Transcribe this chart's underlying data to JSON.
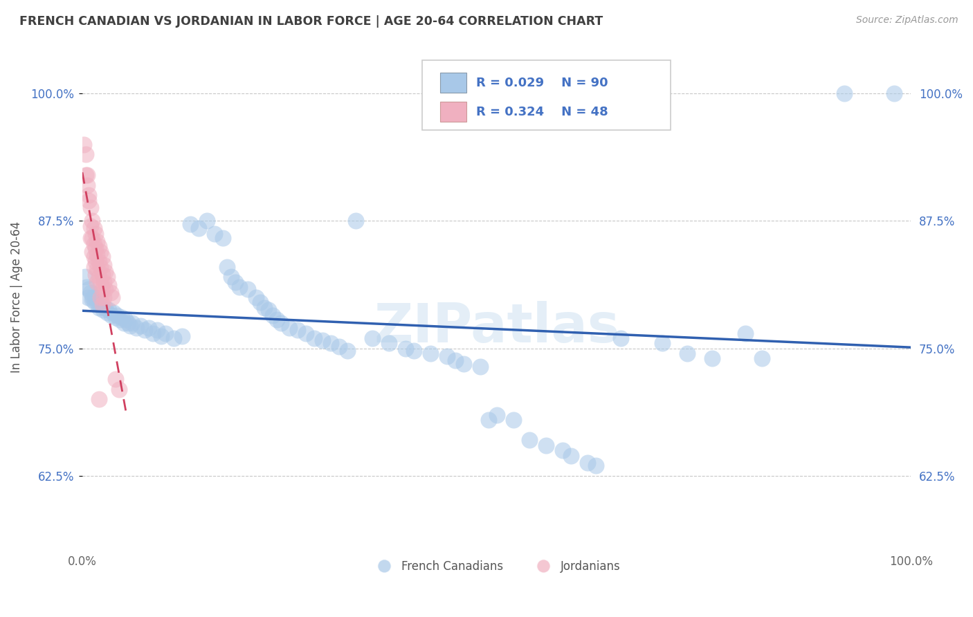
{
  "title": "FRENCH CANADIAN VS JORDANIAN IN LABOR FORCE | AGE 20-64 CORRELATION CHART",
  "source": "Source: ZipAtlas.com",
  "ylabel": "In Labor Force | Age 20-64",
  "xlim": [
    0.0,
    1.0
  ],
  "ylim": [
    0.555,
    1.045
  ],
  "yticks": [
    0.625,
    0.75,
    0.875,
    1.0
  ],
  "ytick_labels": [
    "62.5%",
    "75.0%",
    "87.5%",
    "100.0%"
  ],
  "xticks": [
    0.0,
    1.0
  ],
  "xtick_labels": [
    "0.0%",
    "100.0%"
  ],
  "legend_r1": "R = 0.029",
  "legend_n1": "N = 90",
  "legend_r2": "R = 0.324",
  "legend_n2": "N = 48",
  "blue_color": "#a8c8e8",
  "pink_color": "#f0b0c0",
  "blue_line_color": "#3060b0",
  "pink_line_color": "#d04060",
  "grid_color": "#c8c8c8",
  "watermark": "ZIPatlas",
  "title_color": "#404040",
  "r_color": "#4472c4",
  "blue_scatter": [
    [
      0.003,
      0.82
    ],
    [
      0.005,
      0.81
    ],
    [
      0.007,
      0.8
    ],
    [
      0.008,
      0.808
    ],
    [
      0.01,
      0.805
    ],
    [
      0.012,
      0.798
    ],
    [
      0.013,
      0.8
    ],
    [
      0.015,
      0.795
    ],
    [
      0.016,
      0.8
    ],
    [
      0.018,
      0.795
    ],
    [
      0.02,
      0.79
    ],
    [
      0.022,
      0.792
    ],
    [
      0.025,
      0.788
    ],
    [
      0.028,
      0.79
    ],
    [
      0.03,
      0.785
    ],
    [
      0.032,
      0.788
    ],
    [
      0.035,
      0.782
    ],
    [
      0.038,
      0.785
    ],
    [
      0.04,
      0.78
    ],
    [
      0.042,
      0.782
    ],
    [
      0.045,
      0.778
    ],
    [
      0.048,
      0.78
    ],
    [
      0.05,
      0.775
    ],
    [
      0.052,
      0.778
    ],
    [
      0.055,
      0.775
    ],
    [
      0.058,
      0.772
    ],
    [
      0.06,
      0.775
    ],
    [
      0.065,
      0.77
    ],
    [
      0.07,
      0.772
    ],
    [
      0.075,
      0.768
    ],
    [
      0.08,
      0.77
    ],
    [
      0.085,
      0.765
    ],
    [
      0.09,
      0.768
    ],
    [
      0.095,
      0.762
    ],
    [
      0.1,
      0.765
    ],
    [
      0.11,
      0.76
    ],
    [
      0.12,
      0.762
    ],
    [
      0.13,
      0.872
    ],
    [
      0.14,
      0.868
    ],
    [
      0.15,
      0.875
    ],
    [
      0.16,
      0.862
    ],
    [
      0.17,
      0.858
    ],
    [
      0.175,
      0.83
    ],
    [
      0.18,
      0.82
    ],
    [
      0.185,
      0.815
    ],
    [
      0.19,
      0.81
    ],
    [
      0.2,
      0.808
    ],
    [
      0.21,
      0.8
    ],
    [
      0.215,
      0.795
    ],
    [
      0.22,
      0.79
    ],
    [
      0.225,
      0.788
    ],
    [
      0.23,
      0.782
    ],
    [
      0.235,
      0.778
    ],
    [
      0.24,
      0.775
    ],
    [
      0.25,
      0.77
    ],
    [
      0.26,
      0.768
    ],
    [
      0.27,
      0.765
    ],
    [
      0.28,
      0.76
    ],
    [
      0.29,
      0.758
    ],
    [
      0.3,
      0.755
    ],
    [
      0.31,
      0.752
    ],
    [
      0.32,
      0.748
    ],
    [
      0.33,
      0.875
    ],
    [
      0.35,
      0.76
    ],
    [
      0.37,
      0.755
    ],
    [
      0.39,
      0.75
    ],
    [
      0.4,
      0.748
    ],
    [
      0.42,
      0.745
    ],
    [
      0.44,
      0.742
    ],
    [
      0.45,
      0.738
    ],
    [
      0.46,
      0.735
    ],
    [
      0.48,
      0.732
    ],
    [
      0.49,
      0.68
    ],
    [
      0.5,
      0.685
    ],
    [
      0.52,
      0.68
    ],
    [
      0.54,
      0.66
    ],
    [
      0.56,
      0.655
    ],
    [
      0.58,
      0.65
    ],
    [
      0.59,
      0.645
    ],
    [
      0.61,
      0.638
    ],
    [
      0.62,
      0.635
    ],
    [
      0.65,
      0.76
    ],
    [
      0.7,
      0.755
    ],
    [
      0.73,
      0.745
    ],
    [
      0.76,
      0.74
    ],
    [
      0.8,
      0.765
    ],
    [
      0.82,
      0.74
    ],
    [
      0.92,
      1.0
    ],
    [
      0.98,
      1.0
    ],
    [
      0.65,
      0.98
    ]
  ],
  "pink_scatter": [
    [
      0.002,
      0.95
    ],
    [
      0.004,
      0.94
    ],
    [
      0.004,
      0.92
    ],
    [
      0.006,
      0.92
    ],
    [
      0.006,
      0.91
    ],
    [
      0.008,
      0.9
    ],
    [
      0.008,
      0.895
    ],
    [
      0.01,
      0.888
    ],
    [
      0.01,
      0.87
    ],
    [
      0.01,
      0.858
    ],
    [
      0.012,
      0.875
    ],
    [
      0.012,
      0.858
    ],
    [
      0.012,
      0.845
    ],
    [
      0.014,
      0.868
    ],
    [
      0.014,
      0.852
    ],
    [
      0.014,
      0.84
    ],
    [
      0.014,
      0.83
    ],
    [
      0.016,
      0.862
    ],
    [
      0.016,
      0.848
    ],
    [
      0.016,
      0.835
    ],
    [
      0.016,
      0.822
    ],
    [
      0.018,
      0.855
    ],
    [
      0.018,
      0.842
    ],
    [
      0.018,
      0.828
    ],
    [
      0.018,
      0.815
    ],
    [
      0.02,
      0.85
    ],
    [
      0.02,
      0.835
    ],
    [
      0.02,
      0.82
    ],
    [
      0.022,
      0.845
    ],
    [
      0.022,
      0.83
    ],
    [
      0.022,
      0.815
    ],
    [
      0.022,
      0.8
    ],
    [
      0.024,
      0.84
    ],
    [
      0.024,
      0.822
    ],
    [
      0.024,
      0.808
    ],
    [
      0.024,
      0.793
    ],
    [
      0.026,
      0.832
    ],
    [
      0.026,
      0.815
    ],
    [
      0.026,
      0.8
    ],
    [
      0.028,
      0.825
    ],
    [
      0.028,
      0.808
    ],
    [
      0.03,
      0.82
    ],
    [
      0.032,
      0.812
    ],
    [
      0.034,
      0.805
    ],
    [
      0.036,
      0.8
    ],
    [
      0.04,
      0.72
    ],
    [
      0.044,
      0.71
    ],
    [
      0.02,
      0.7
    ]
  ]
}
